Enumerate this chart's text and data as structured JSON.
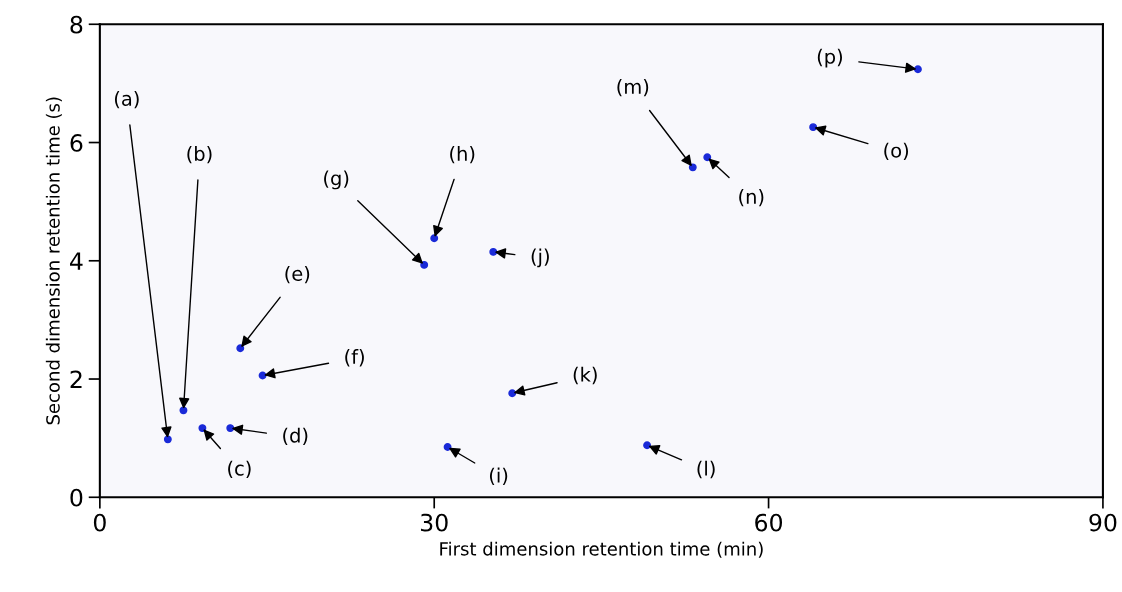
{
  "chart_data": {
    "type": "scatter",
    "xlabel": "First dimension retention time (min)",
    "ylabel": "Second dimension retention time (s)",
    "xlim": [
      0,
      90
    ],
    "xticks": [
      0,
      30,
      60,
      90
    ],
    "ylim": [
      0,
      8
    ],
    "yticks": [
      0,
      2,
      4,
      6,
      8
    ],
    "grid": false,
    "marker": "circle",
    "series": [
      {
        "color": "#1a2ad8",
        "x": [
          6.1,
          7.5,
          9.2,
          11.7,
          12.6,
          14.6,
          29.1,
          30.0,
          31.2,
          35.3,
          37.0,
          49.1,
          53.2,
          54.5,
          64.0,
          73.4
        ],
        "values": [
          0.98,
          1.47,
          1.17,
          1.17,
          2.52,
          2.06,
          3.93,
          4.38,
          0.85,
          4.15,
          1.76,
          0.88,
          5.58,
          5.75,
          6.26,
          7.24
        ]
      }
    ],
    "annotations": [
      {
        "text": "(a)",
        "x": 6.1,
        "y": 0.98
      },
      {
        "text": "(b)",
        "x": 7.5,
        "y": 1.47
      },
      {
        "text": "(c)",
        "x": 9.2,
        "y": 1.17
      },
      {
        "text": "(d)",
        "x": 11.7,
        "y": 1.17
      },
      {
        "text": "(e)",
        "x": 12.6,
        "y": 2.52
      },
      {
        "text": "(f)",
        "x": 14.6,
        "y": 2.06
      },
      {
        "text": "(g)",
        "x": 29.1,
        "y": 3.93
      },
      {
        "text": "(h)",
        "x": 30.0,
        "y": 4.38
      },
      {
        "text": "(i)",
        "x": 31.2,
        "y": 0.85
      },
      {
        "text": "(j)",
        "x": 35.3,
        "y": 4.15
      },
      {
        "text": "(k)",
        "x": 37.0,
        "y": 1.76
      },
      {
        "text": "(l)",
        "x": 49.1,
        "y": 0.88
      },
      {
        "text": "(m)",
        "x": 53.2,
        "y": 5.58
      },
      {
        "text": "(n)",
        "x": 54.5,
        "y": 5.75
      },
      {
        "text": "(o)",
        "x": 64.0,
        "y": 6.26
      },
      {
        "text": "(p)",
        "x": 73.4,
        "y": 7.24
      }
    ]
  }
}
